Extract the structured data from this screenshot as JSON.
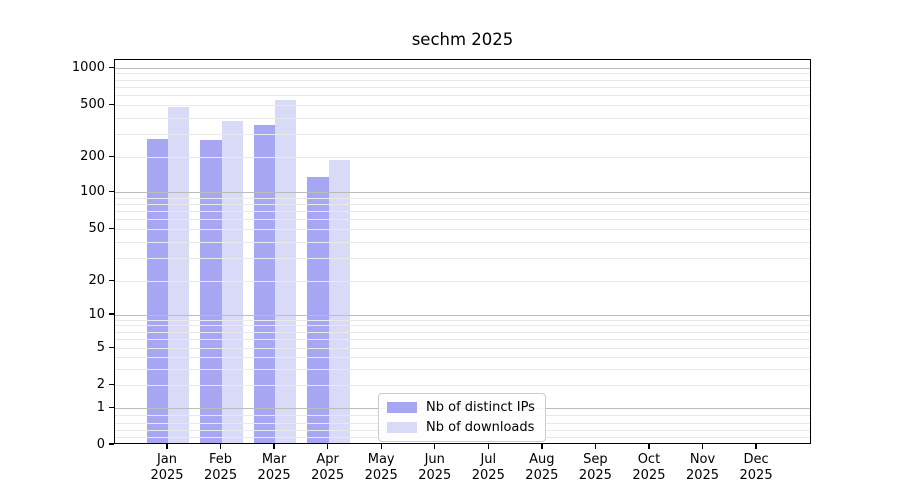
{
  "title": "sechm 2025",
  "colors": {
    "distinct_ips": "#a6a6f2",
    "downloads": "#d9d9f8",
    "grid_major": "#bcbcbc",
    "grid_minor": "#e9e9e9",
    "spine": "#000000",
    "background": "#ffffff",
    "legend_border": "#cccccc"
  },
  "legend": {
    "items": [
      {
        "label": "Nb of distinct IPs",
        "color": "#a6a6f2"
      },
      {
        "label": "Nb of downloads",
        "color": "#d9d9f8"
      }
    ]
  },
  "chart_data": {
    "type": "bar",
    "title": "sechm 2025",
    "categories": [
      "Jan 2025",
      "Feb 2025",
      "Mar 2025",
      "Apr 2025",
      "May 2025",
      "Jun 2025",
      "Jul 2025",
      "Aug 2025",
      "Sep 2025",
      "Oct 2025",
      "Nov 2025",
      "Dec 2025"
    ],
    "series": [
      {
        "name": "Nb of distinct IPs",
        "color": "#a6a6f2",
        "values": [
          270,
          265,
          340,
          130,
          null,
          null,
          null,
          null,
          null,
          null,
          null,
          null
        ]
      },
      {
        "name": "Nb of downloads",
        "color": "#d9d9f8",
        "values": [
          470,
          365,
          535,
          185,
          null,
          null,
          null,
          null,
          null,
          null,
          null,
          null
        ]
      }
    ],
    "xlabel": "",
    "ylabel": "",
    "yscale": "symlog",
    "y_ticks": [
      0,
      1,
      2,
      5,
      10,
      20,
      50,
      100,
      200,
      500,
      1000
    ],
    "y_tick_labels": [
      "0",
      "1",
      "2",
      "5",
      "10",
      "20",
      "50",
      "100",
      "200",
      "500",
      "1000"
    ],
    "ylim": [
      0,
      1150
    ],
    "grid": "horizontal-major-and-minor",
    "legend_position": "lower-center-inside"
  }
}
